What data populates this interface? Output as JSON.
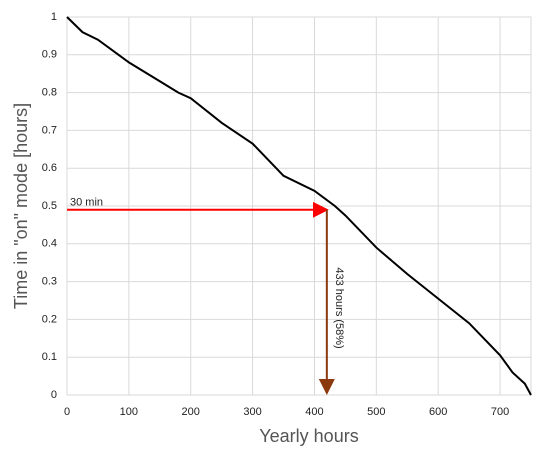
{
  "chart_data": {
    "type": "line",
    "x_label": "Yearly hours",
    "y_label": "Time in \"on\" mode [hours]",
    "x": [
      0,
      25,
      50,
      100,
      150,
      180,
      200,
      250,
      300,
      350,
      400,
      433,
      450,
      500,
      550,
      600,
      650,
      700,
      720,
      740,
      750
    ],
    "series": [
      {
        "name": "Time in on mode",
        "color": "#000000",
        "values": [
          1.0,
          0.96,
          0.94,
          0.88,
          0.83,
          0.8,
          0.785,
          0.72,
          0.665,
          0.58,
          0.54,
          0.5,
          0.475,
          0.39,
          0.32,
          0.255,
          0.19,
          0.105,
          0.06,
          0.03,
          0.0
        ]
      }
    ],
    "xlim": [
      0,
      750
    ],
    "ylim": [
      0,
      1
    ],
    "xticks": [
      0,
      100,
      200,
      300,
      400,
      500,
      600,
      700
    ],
    "yticks": [
      0,
      0.1,
      0.2,
      0.3,
      0.4,
      0.5,
      0.6,
      0.7,
      0.8,
      0.9,
      1
    ],
    "grid": true,
    "annotations": [
      {
        "text": "30 min",
        "y": 0.49,
        "x": 420,
        "color": "#ff0000",
        "direction": "horizontal"
      },
      {
        "text": "433 hours (58%)",
        "x": 420,
        "y": 0.49,
        "color": "#8b3a0e",
        "direction": "vertical"
      }
    ]
  }
}
